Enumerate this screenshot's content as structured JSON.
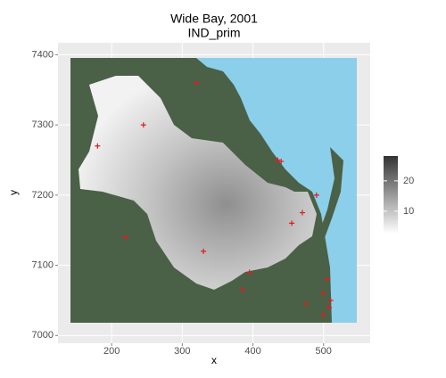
{
  "chart_data": {
    "type": "raster-map",
    "title": "Wide Bay, 2001",
    "subtitle": "IND_prim",
    "x_label": "x",
    "y_label": "y",
    "xlim": [
      124,
      566
    ],
    "ylim": [
      6989,
      7417
    ],
    "xticks": [
      200,
      300,
      400,
      500
    ],
    "yticks": [
      7000,
      7100,
      7200,
      7300,
      7400
    ],
    "grid": true,
    "points": {
      "color": "#e31a1c",
      "x": [
        320,
        245,
        435,
        440,
        490,
        470,
        505,
        500,
        510,
        508,
        475,
        395,
        385,
        500,
        220,
        180,
        330,
        455
      ],
      "y": [
        7360,
        7300,
        7250,
        7248,
        7200,
        7175,
        7080,
        7060,
        7050,
        7040,
        7045,
        7090,
        7065,
        7030,
        7140,
        7270,
        7120,
        7160
      ]
    },
    "colorbar": {
      "lim": [
        2.6,
        28.2
      ],
      "ticks": [
        10,
        20
      ],
      "low": "#ffffff",
      "high": "#333333"
    }
  }
}
